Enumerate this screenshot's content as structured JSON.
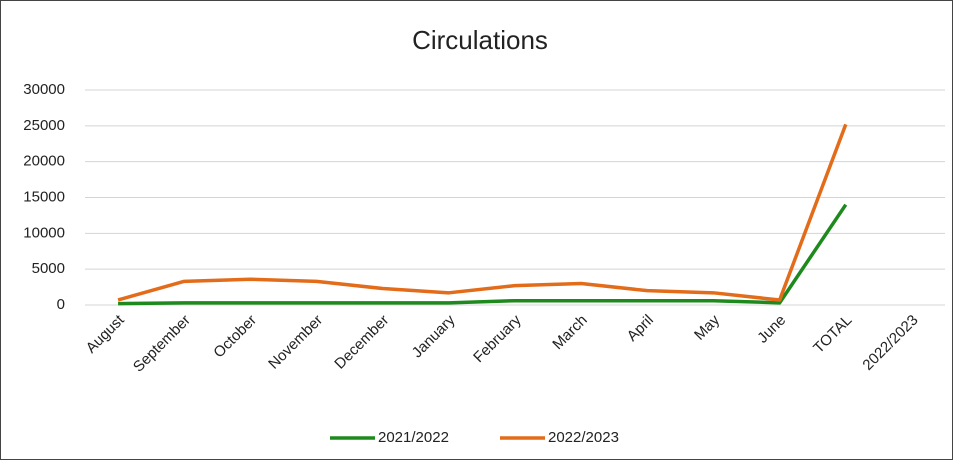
{
  "chart_data": {
    "type": "line",
    "title": "Circulations",
    "categories": [
      "August",
      "September",
      "October",
      "November",
      "December",
      "January",
      "February",
      "March",
      "April",
      "May",
      "June",
      "TOTAL",
      "2022/2023"
    ],
    "series": [
      {
        "name": "2021/2022",
        "color": "#1e8a1e",
        "values": [
          200,
          300,
          300,
          300,
          300,
          300,
          600,
          600,
          600,
          600,
          300,
          14000,
          null
        ]
      },
      {
        "name": "2022/2023",
        "color": "#e36c1a",
        "values": [
          700,
          3300,
          3600,
          3300,
          2300,
          1700,
          2700,
          3000,
          2000,
          1700,
          700,
          25200,
          null
        ]
      }
    ],
    "ylim": [
      0,
      30000
    ],
    "yticks": [
      0,
      5000,
      10000,
      15000,
      20000,
      25000,
      30000
    ],
    "grid": true,
    "legend": "bottom"
  }
}
